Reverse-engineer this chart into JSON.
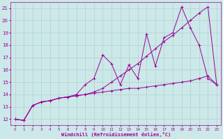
{
  "x": [
    0,
    1,
    2,
    3,
    4,
    5,
    6,
    7,
    8,
    9,
    10,
    11,
    12,
    13,
    14,
    15,
    16,
    17,
    18,
    19,
    20,
    21,
    22,
    23
  ],
  "line1": [
    12,
    11.9,
    13.1,
    13.4,
    13.5,
    13.7,
    13.8,
    14.0,
    14.8,
    15.3,
    17.2,
    16.5,
    14.8,
    16.4,
    15.3,
    18.9,
    16.3,
    18.6,
    19.0,
    21.1,
    19.4,
    18.0,
    15.3,
    14.8
  ],
  "line2": [
    12,
    11.9,
    13.1,
    13.4,
    13.5,
    13.7,
    13.8,
    13.9,
    14.0,
    14.1,
    14.2,
    14.3,
    14.4,
    14.5,
    14.5,
    14.6,
    14.7,
    14.8,
    14.9,
    15.0,
    15.1,
    15.3,
    15.5,
    14.8
  ],
  "line3": [
    12,
    11.9,
    13.1,
    13.4,
    13.5,
    13.7,
    13.8,
    13.9,
    14.0,
    14.2,
    14.5,
    15.0,
    15.5,
    16.0,
    16.5,
    17.1,
    17.7,
    18.3,
    18.8,
    19.4,
    20.0,
    20.6,
    21.1,
    14.8
  ],
  "color": "#990099",
  "bg_color": "#cce8e8",
  "grid_color": "#aacccc",
  "xlabel": "Windchill (Refroidissement éolien,°C)",
  "ylim": [
    11.5,
    21.5
  ],
  "xlim": [
    -0.5,
    23.5
  ],
  "yticks": [
    12,
    13,
    14,
    15,
    16,
    17,
    18,
    19,
    20,
    21
  ],
  "xticks": [
    0,
    1,
    2,
    3,
    4,
    5,
    6,
    7,
    8,
    9,
    10,
    11,
    12,
    13,
    14,
    15,
    16,
    17,
    18,
    19,
    20,
    21,
    22,
    23
  ]
}
